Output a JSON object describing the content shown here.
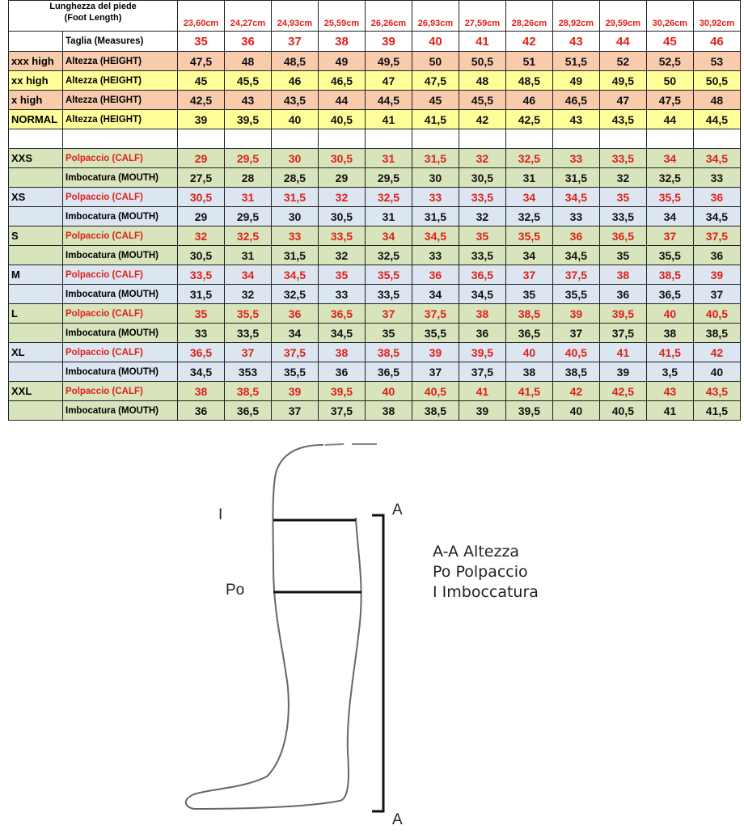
{
  "table": {
    "title_line1": "Lunghezza del piede",
    "title_line2": "(Foot Length)",
    "foot_lengths": [
      "23,60cm",
      "24,27cm",
      "24,93cm",
      "25,59cm",
      "26,26cm",
      "26,93cm",
      "27,59cm",
      "28,26cm",
      "28,92cm",
      "29,59cm",
      "30,26cm",
      "30,92cm"
    ],
    "size_label": "Taglia (Measures)",
    "sizes": [
      "35",
      "36",
      "37",
      "38",
      "39",
      "40",
      "41",
      "42",
      "43",
      "44",
      "45",
      "46"
    ],
    "height_rows": [
      {
        "group": "xxx high",
        "label": "Altezza (HEIGHT)",
        "color": "#f8cbad",
        "values": [
          "47,5",
          "48",
          "48,5",
          "49",
          "49,5",
          "50",
          "50,5",
          "51",
          "51,5",
          "52",
          "52,5",
          "53"
        ]
      },
      {
        "group": "xx high",
        "label": "Altezza (HEIGHT)",
        "color": "#ffff99",
        "values": [
          "45",
          "45,5",
          "46",
          "46,5",
          "47",
          "47,5",
          "48",
          "48,5",
          "49",
          "49,5",
          "50",
          "50,5"
        ]
      },
      {
        "group": "x high",
        "label": "Altezza (HEIGHT)",
        "color": "#f8cbad",
        "values": [
          "42,5",
          "43",
          "43,5",
          "44",
          "44,5",
          "45",
          "45,5",
          "46",
          "46,5",
          "47",
          "47,5",
          "48"
        ]
      },
      {
        "group": "NORMAL",
        "label": "Altezza (HEIGHT)",
        "color": "#ffff99",
        "values": [
          "39",
          "39,5",
          "40",
          "40,5",
          "41",
          "41,5",
          "42",
          "42,5",
          "43",
          "43,5",
          "44",
          "44,5"
        ]
      }
    ],
    "calf_label": "Polpaccio (CALF)",
    "mouth_label": "Imbocatura (MOUTH)",
    "width_groups": [
      {
        "group": "XXS",
        "color": "#d8e4bc",
        "calf": [
          "29",
          "29,5",
          "30",
          "30,5",
          "31",
          "31,5",
          "32",
          "32,5",
          "33",
          "33,5",
          "34",
          "34,5"
        ],
        "mouth": [
          "27,5",
          "28",
          "28,5",
          "29",
          "29,5",
          "30",
          "30,5",
          "31",
          "31,5",
          "32",
          "32,5",
          "33"
        ]
      },
      {
        "group": "XS",
        "color": "#dce6f1",
        "calf": [
          "30,5",
          "31",
          "31,5",
          "32",
          "32,5",
          "33",
          "33,5",
          "34",
          "34,5",
          "35",
          "35,5",
          "36"
        ],
        "mouth": [
          "29",
          "29,5",
          "30",
          "30,5",
          "31",
          "31,5",
          "32",
          "32,5",
          "33",
          "33,5",
          "34",
          "34,5"
        ]
      },
      {
        "group": "S",
        "color": "#d8e4bc",
        "calf": [
          "32",
          "32,5",
          "33",
          "33,5",
          "34",
          "34,5",
          "35",
          "35,5",
          "36",
          "36,5",
          "37",
          "37,5"
        ],
        "mouth": [
          "30,5",
          "31",
          "31,5",
          "32",
          "32,5",
          "33",
          "33,5",
          "34",
          "34,5",
          "35",
          "35,5",
          "36"
        ]
      },
      {
        "group": "M",
        "color": "#dce6f1",
        "calf": [
          "33,5",
          "34",
          "34,5",
          "35",
          "35,5",
          "36",
          "36,5",
          "37",
          "37,5",
          "38",
          "38,5",
          "39"
        ],
        "mouth": [
          "31,5",
          "32",
          "32,5",
          "33",
          "33,5",
          "34",
          "34,5",
          "35",
          "35,5",
          "36",
          "36,5",
          "37"
        ]
      },
      {
        "group": "L",
        "color": "#d8e4bc",
        "calf": [
          "35",
          "35,5",
          "36",
          "36,5",
          "37",
          "37,5",
          "38",
          "38,5",
          "39",
          "39,5",
          "40",
          "40,5"
        ],
        "mouth": [
          "33",
          "33,5",
          "34",
          "34,5",
          "35",
          "35,5",
          "36",
          "36,5",
          "37",
          "37,5",
          "38",
          "38,5"
        ]
      },
      {
        "group": "XL",
        "color": "#dce6f1",
        "calf": [
          "36,5",
          "37",
          "37,5",
          "38",
          "38,5",
          "39",
          "39,5",
          "40",
          "40,5",
          "41",
          "41,5",
          "42"
        ],
        "mouth": [
          "34,5",
          "353",
          "35,5",
          "36",
          "36,5",
          "37",
          "37,5",
          "38",
          "38,5",
          "39",
          "3,5",
          "40"
        ]
      },
      {
        "group": "XXL",
        "color": "#d8e4bc",
        "calf": [
          "38",
          "38,5",
          "39",
          "39,5",
          "40",
          "40,5",
          "41",
          "41,5",
          "42",
          "42,5",
          "43",
          "43,5"
        ],
        "mouth": [
          "36",
          "36,5",
          "37",
          "37,5",
          "38",
          "38,5",
          "39",
          "39,5",
          "40",
          "40,5",
          "41",
          "41,5"
        ]
      }
    ],
    "accent_red": "#e0201b"
  },
  "diagram": {
    "label_i": "I",
    "label_po": "Po",
    "label_a_top": "A",
    "label_a_bottom": "A",
    "legend": [
      "A-A Altezza",
      "Po Polpaccio",
      "I Imboccatura"
    ]
  }
}
